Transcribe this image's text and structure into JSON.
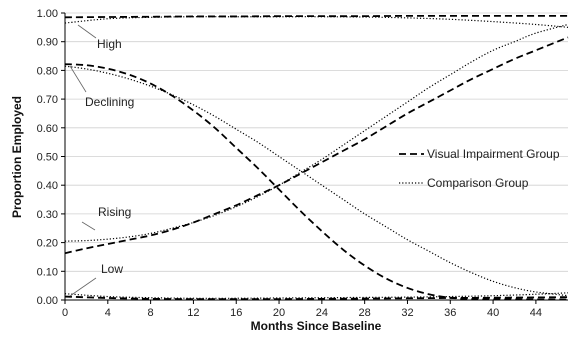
{
  "chart_data": {
    "type": "line",
    "xlabel": "Months Since Baseline",
    "ylabel": "Proportion Employed",
    "xlim": [
      0,
      47
    ],
    "ylim": [
      0,
      1
    ],
    "xticks": [
      "0",
      "4",
      "8",
      "12",
      "16",
      "20",
      "24",
      "28",
      "32",
      "36",
      "40",
      "44"
    ],
    "yticks": [
      "0.00",
      "0.10",
      "0.20",
      "0.30",
      "0.40",
      "0.50",
      "0.60",
      "0.70",
      "0.80",
      "0.90",
      "1.00"
    ],
    "legend_position": "right",
    "legend": [
      "Visual Impairment Group",
      "Comparison Group"
    ],
    "annotations": [
      "High",
      "Declining",
      "Rising",
      "Low"
    ],
    "series": [
      {
        "group": "Visual Impairment Group",
        "trajectory": "High",
        "style": "dashed",
        "x": [
          0,
          4,
          8,
          12,
          16,
          20,
          24,
          28,
          32,
          36,
          40,
          44,
          47
        ],
        "y": [
          0.985,
          0.986,
          0.987,
          0.988,
          0.988,
          0.989,
          0.989,
          0.989,
          0.99,
          0.99,
          0.99,
          0.99,
          0.99
        ]
      },
      {
        "group": "Comparison Group",
        "trajectory": "High",
        "style": "dotted",
        "x": [
          0,
          4,
          8,
          12,
          16,
          20,
          24,
          28,
          32,
          36,
          40,
          44,
          47
        ],
        "y": [
          0.965,
          0.98,
          0.985,
          0.987,
          0.987,
          0.987,
          0.987,
          0.986,
          0.983,
          0.978,
          0.97,
          0.96,
          0.95
        ]
      },
      {
        "group": "Visual Impairment Group",
        "trajectory": "Declining",
        "style": "dashed",
        "x": [
          0,
          2,
          4,
          6,
          8,
          10,
          12,
          14,
          16,
          18,
          20,
          22,
          24,
          26,
          28,
          30,
          32,
          34,
          36,
          38,
          40,
          42,
          44,
          47
        ],
        "y": [
          0.822,
          0.818,
          0.806,
          0.785,
          0.754,
          0.712,
          0.66,
          0.6,
          0.53,
          0.46,
          0.385,
          0.31,
          0.24,
          0.175,
          0.12,
          0.075,
          0.042,
          0.02,
          0.008,
          0.003,
          0.002,
          0.002,
          0.002,
          0.002
        ]
      },
      {
        "group": "Comparison Group",
        "trajectory": "Declining",
        "style": "dotted",
        "x": [
          0,
          2,
          4,
          6,
          8,
          10,
          12,
          14,
          16,
          18,
          20,
          22,
          24,
          26,
          28,
          30,
          32,
          34,
          36,
          38,
          40,
          42,
          44,
          47
        ],
        "y": [
          0.815,
          0.805,
          0.79,
          0.77,
          0.745,
          0.715,
          0.68,
          0.64,
          0.595,
          0.55,
          0.5,
          0.45,
          0.4,
          0.35,
          0.3,
          0.255,
          0.21,
          0.17,
          0.13,
          0.095,
          0.065,
          0.043,
          0.028,
          0.015
        ]
      },
      {
        "group": "Visual Impairment Group",
        "trajectory": "Rising",
        "style": "dashed",
        "x": [
          0,
          2,
          4,
          6,
          8,
          10,
          12,
          14,
          16,
          18,
          20,
          22,
          24,
          26,
          28,
          30,
          32,
          34,
          36,
          38,
          40,
          42,
          44,
          47
        ],
        "y": [
          0.163,
          0.18,
          0.195,
          0.21,
          0.225,
          0.245,
          0.27,
          0.3,
          0.33,
          0.365,
          0.4,
          0.44,
          0.48,
          0.52,
          0.56,
          0.605,
          0.65,
          0.69,
          0.73,
          0.77,
          0.805,
          0.84,
          0.87,
          0.915
        ]
      },
      {
        "group": "Comparison Group",
        "trajectory": "Rising",
        "style": "dotted",
        "x": [
          0,
          2,
          4,
          6,
          8,
          10,
          12,
          14,
          16,
          18,
          20,
          22,
          24,
          26,
          28,
          30,
          32,
          34,
          36,
          38,
          40,
          42,
          44,
          47
        ],
        "y": [
          0.205,
          0.207,
          0.212,
          0.22,
          0.232,
          0.25,
          0.27,
          0.295,
          0.325,
          0.36,
          0.4,
          0.445,
          0.49,
          0.54,
          0.59,
          0.64,
          0.69,
          0.74,
          0.785,
          0.83,
          0.87,
          0.9,
          0.93,
          0.96
        ]
      },
      {
        "group": "Visual Impairment Group",
        "trajectory": "Low",
        "style": "dashed",
        "x": [
          0,
          4,
          8,
          12,
          16,
          20,
          24,
          28,
          32,
          36,
          40,
          44,
          47
        ],
        "y": [
          0.012,
          0.007,
          0.004,
          0.003,
          0.003,
          0.003,
          0.004,
          0.005,
          0.006,
          0.007,
          0.008,
          0.009,
          0.01
        ]
      },
      {
        "group": "Comparison Group",
        "trajectory": "Low",
        "style": "dotted",
        "x": [
          0,
          4,
          8,
          12,
          16,
          20,
          24,
          28,
          32,
          36,
          40,
          44,
          47
        ],
        "y": [
          0.022,
          0.012,
          0.008,
          0.006,
          0.006,
          0.007,
          0.008,
          0.009,
          0.01,
          0.012,
          0.015,
          0.02,
          0.025
        ]
      }
    ]
  }
}
